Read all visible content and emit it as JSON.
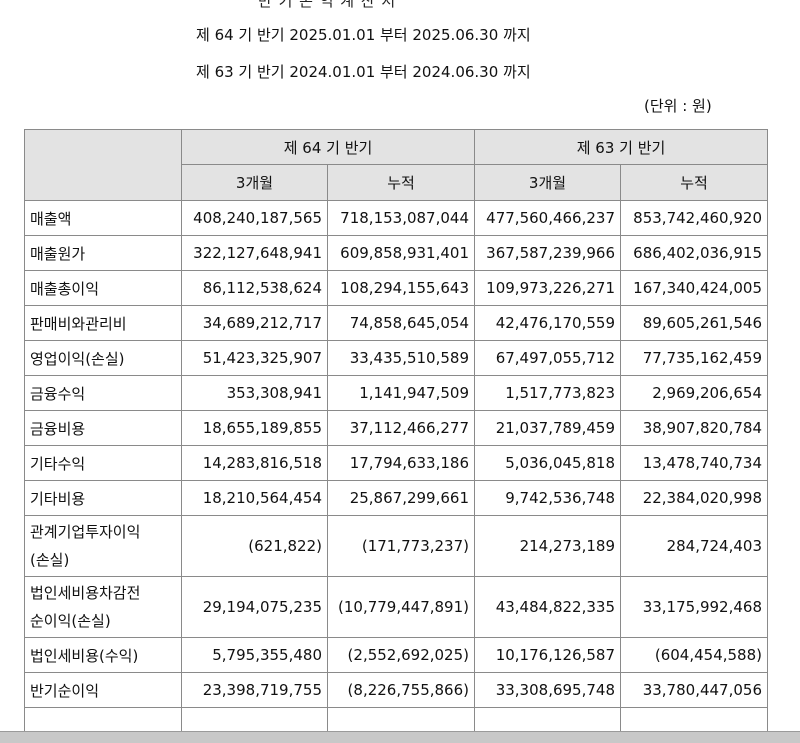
{
  "document": {
    "cut_title": "반 기 손 익 계 산 서",
    "period_current": "제 64 기 반기 2025.01.01 부터 2025.06.30 까지",
    "period_prior": "제 63 기 반기 2024.01.01 부터 2024.06.30 까지",
    "unit": "(단위 : 원)"
  },
  "table": {
    "header_current": "제 64 기 반기",
    "header_prior": "제 63 기 반기",
    "sub_3m": "3개월",
    "sub_cum": "누적",
    "rows": [
      {
        "label": "매출액",
        "label2": "",
        "v": [
          "408,240,187,565",
          "718,153,087,044",
          "477,560,466,237",
          "853,742,460,920"
        ]
      },
      {
        "label": "매출원가",
        "label2": "",
        "v": [
          "322,127,648,941",
          "609,858,931,401",
          "367,587,239,966",
          "686,402,036,915"
        ]
      },
      {
        "label": "매출총이익",
        "label2": "",
        "v": [
          "86,112,538,624",
          "108,294,155,643",
          "109,973,226,271",
          "167,340,424,005"
        ]
      },
      {
        "label": "판매비와관리비",
        "label2": "",
        "v": [
          "34,689,212,717",
          "74,858,645,054",
          "42,476,170,559",
          "89,605,261,546"
        ]
      },
      {
        "label": "영업이익(손실)",
        "label2": "",
        "v": [
          "51,423,325,907",
          "33,435,510,589",
          "67,497,055,712",
          "77,735,162,459"
        ]
      },
      {
        "label": "금융수익",
        "label2": "",
        "v": [
          "353,308,941",
          "1,141,947,509",
          "1,517,773,823",
          "2,969,206,654"
        ]
      },
      {
        "label": "금융비용",
        "label2": "",
        "v": [
          "18,655,189,855",
          "37,112,466,277",
          "21,037,789,459",
          "38,907,820,784"
        ]
      },
      {
        "label": "기타수익",
        "label2": "",
        "v": [
          "14,283,816,518",
          "17,794,633,186",
          "5,036,045,818",
          "13,478,740,734"
        ]
      },
      {
        "label": "기타비용",
        "label2": "",
        "v": [
          "18,210,564,454",
          "25,867,299,661",
          "9,742,536,748",
          "22,384,020,998"
        ]
      },
      {
        "label": "관계기업투자이익",
        "label2": "(손실)",
        "v": [
          "(621,822)",
          "(171,773,237)",
          "214,273,189",
          "284,724,403"
        ]
      },
      {
        "label": "법인세비용차감전",
        "label2": "순이익(손실)",
        "v": [
          "29,194,075,235",
          "(10,779,447,891)",
          "43,484,822,335",
          "33,175,992,468"
        ]
      },
      {
        "label": "법인세비용(수익)",
        "label2": "",
        "v": [
          "5,795,355,480",
          "(2,552,692,025)",
          "10,176,126,587",
          "(604,454,588)"
        ]
      },
      {
        "label": "반기순이익",
        "label2": "",
        "v": [
          "23,398,719,755",
          "(8,226,755,866)",
          "33,308,695,748",
          "33,780,447,056"
        ]
      }
    ]
  }
}
